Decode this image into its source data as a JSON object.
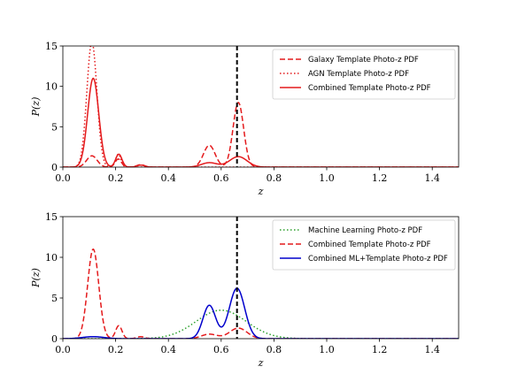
{
  "chart_data": [
    {
      "type": "line",
      "xlabel": "z",
      "ylabel": "P(z)",
      "xlim": [
        0.0,
        1.5
      ],
      "ylim": [
        0,
        15
      ],
      "xticks": [
        "0.0",
        "0.2",
        "0.4",
        "0.6",
        "0.8",
        "1.0",
        "1.2",
        "1.4"
      ],
      "yticks": [
        "0",
        "5",
        "10",
        "15"
      ],
      "legend_position": "top-right",
      "vline": 0.66,
      "series": [
        {
          "name": "Galaxy Template Photo-z PDF",
          "color": "#e41a1c",
          "style": "dashed",
          "components": [
            {
              "mu": 0.11,
              "sigma": 0.02,
              "amp": 1.4
            },
            {
              "mu": 0.21,
              "sigma": 0.012,
              "amp": 1.0
            },
            {
              "mu": 0.295,
              "sigma": 0.015,
              "amp": 0.3
            },
            {
              "mu": 0.555,
              "sigma": 0.022,
              "amp": 2.7
            },
            {
              "mu": 0.665,
              "sigma": 0.02,
              "amp": 8.0
            }
          ]
        },
        {
          "name": "AGN Template Photo-z PDF",
          "color": "#e41a1c",
          "style": "dotted",
          "components": [
            {
              "mu": 0.11,
              "sigma": 0.019,
              "amp": 15.5
            },
            {
              "mu": 0.21,
              "sigma": 0.01,
              "amp": 1.6
            }
          ]
        },
        {
          "name": "Combined Template Photo-z PDF",
          "color": "#e41a1c",
          "style": "solid",
          "components": [
            {
              "mu": 0.115,
              "sigma": 0.021,
              "amp": 11.0
            },
            {
              "mu": 0.212,
              "sigma": 0.012,
              "amp": 1.6
            },
            {
              "mu": 0.295,
              "sigma": 0.015,
              "amp": 0.25
            },
            {
              "mu": 0.555,
              "sigma": 0.03,
              "amp": 0.55
            },
            {
              "mu": 0.665,
              "sigma": 0.033,
              "amp": 1.3
            }
          ]
        }
      ]
    },
    {
      "type": "line",
      "xlabel": "z",
      "ylabel": "P(z)",
      "xlim": [
        0.0,
        1.5
      ],
      "ylim": [
        0,
        15
      ],
      "xticks": [
        "0.0",
        "0.2",
        "0.4",
        "0.6",
        "0.8",
        "1.0",
        "1.2",
        "1.4"
      ],
      "yticks": [
        "0",
        "5",
        "10",
        "15"
      ],
      "legend_position": "top-right",
      "vline": 0.66,
      "series": [
        {
          "name": "Machine Learning Photo-z PDF",
          "color": "#2ca02c",
          "style": "dotted",
          "components": [
            {
              "mu": 0.6,
              "sigma": 0.095,
              "amp": 3.5
            }
          ]
        },
        {
          "name": "Combined Template Photo-z PDF",
          "color": "#e41a1c",
          "style": "dashed",
          "components": [
            {
              "mu": 0.115,
              "sigma": 0.021,
              "amp": 11.0
            },
            {
              "mu": 0.212,
              "sigma": 0.012,
              "amp": 1.6
            },
            {
              "mu": 0.295,
              "sigma": 0.015,
              "amp": 0.25
            },
            {
              "mu": 0.555,
              "sigma": 0.03,
              "amp": 0.55
            },
            {
              "mu": 0.665,
              "sigma": 0.033,
              "amp": 1.3
            }
          ]
        },
        {
          "name": "Combined ML+Template Photo-z PDF",
          "color": "#0000cc",
          "style": "solid",
          "components": [
            {
              "mu": 0.115,
              "sigma": 0.04,
              "amp": 0.25
            },
            {
              "mu": 0.555,
              "sigma": 0.024,
              "amp": 4.1
            },
            {
              "mu": 0.66,
              "sigma": 0.029,
              "amp": 6.2
            }
          ]
        }
      ]
    }
  ]
}
